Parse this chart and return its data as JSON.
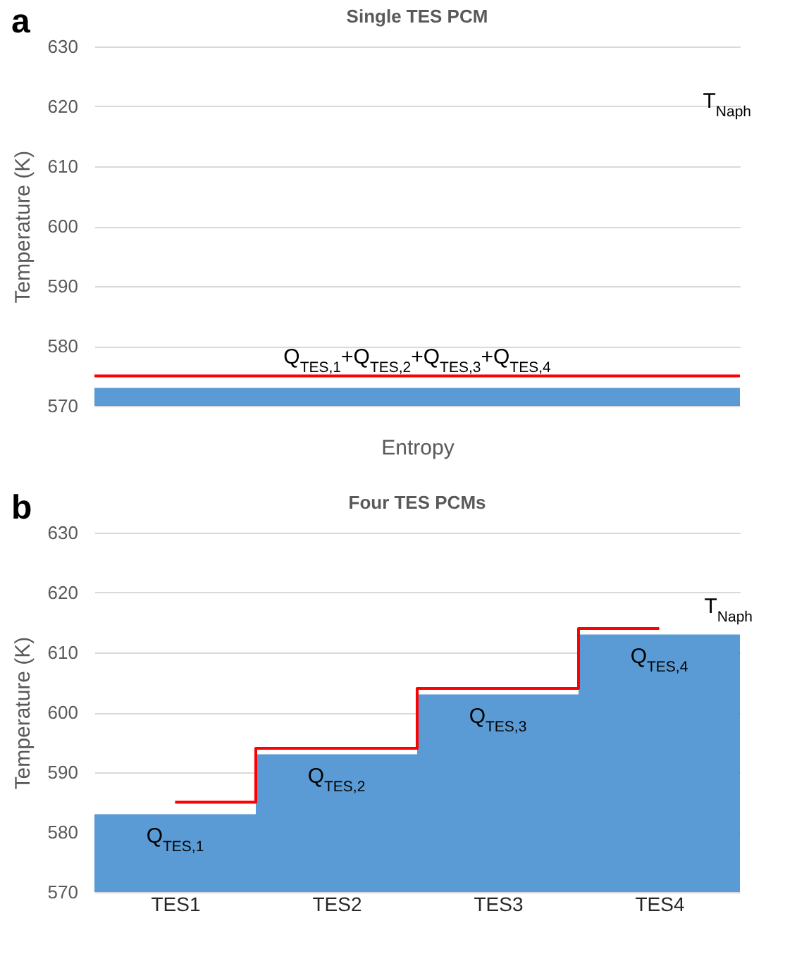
{
  "chart_data": [
    {
      "type": "bar",
      "title": "Single TES PCM",
      "xlabel": "Entropy",
      "ylabel": "Temperature (K)",
      "categories": [
        null
      ],
      "series": [
        {
          "color": "#5b9bd5",
          "values": [
            573
          ]
        }
      ],
      "ref_lines": [
        {
          "axis": "y",
          "value": 575,
          "color": "#ff0000"
        }
      ],
      "ylim": [
        570,
        630
      ],
      "yticks": [
        570,
        580,
        590,
        600,
        610,
        620,
        630
      ],
      "grid": "y",
      "annotations": [
        "a",
        {
          "text": "Q$_{TES,1}$+Q$_{TES,2}$+Q$_{TES,3}$+Q$_{TES,4}$",
          "y": 575
        },
        "T$_{Naph}$"
      ]
    },
    {
      "type": "bar",
      "title": "Four TES PCMs",
      "ylabel": "Temperature (K)",
      "categories": [
        "TES1",
        "TES2",
        "TES3",
        "TES4"
      ],
      "series": [
        {
          "color": "#5b9bd5",
          "values": [
            583,
            593,
            603,
            613
          ]
        },
        {
          "type": "step",
          "color": "#ff0000",
          "values": [
            585,
            594,
            604,
            614
          ]
        }
      ],
      "ylim": [
        570,
        630
      ],
      "yticks": [
        570,
        580,
        590,
        600,
        610,
        620,
        630
      ],
      "grid": "y",
      "annotations": [
        "b",
        {
          "text": "Q$_{TES,1}$",
          "x": "TES1",
          "y": 583
        },
        {
          "text": "Q$_{TES,2}$",
          "x": "TES2",
          "y": 593
        },
        {
          "text": "Q$_{TES,3}$",
          "x": "TES3",
          "y": 603
        },
        {
          "text": "Q$_{TES,4}$",
          "x": "TES4",
          "y": 613
        },
        {
          "text": "T$_{Naph}$",
          "x": "TES4",
          "y": 614
        }
      ]
    }
  ]
}
